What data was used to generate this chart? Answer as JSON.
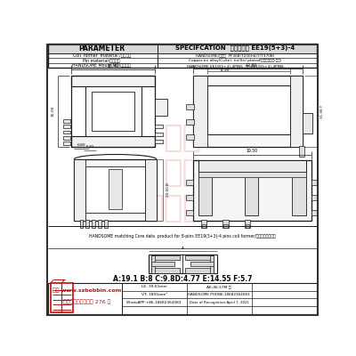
{
  "title": "SPECIFCATION  品名：焉升 EE19(5+3)-4",
  "param_label": "PARAMETER",
  "row1_left": "Coil  former  material /线圈材料",
  "row1_right": "HANDSOME(焉升）  PF36B/T200H4(Y/T370B)",
  "row2_left": "Pin material/端子材料",
  "row2_right": "Copper-tin alloy(CuSn), tin(Sn) plated/锐合银锡镍锡(锡锡)",
  "row3_left": "HANDSOME Moule NO/焉升品名",
  "row3_right": "HANDSOME-EE19(5+3)-4PINS  焉升-EE19(5+3)-4PINS",
  "dim_text": "A:19.1 B:8 C:9.8D:4.77 E:14.55 F:5.7",
  "matching_text": "HANDSOME matching Core data  product for 8-pins EE19(3+3)-4 pins coil former/焉升磁芯配套数据",
  "footer_brand": "焉升 www.szbobbin.com",
  "footer_addr": "东菞市石排下沙大道 276 号",
  "footer_le": "LE: 39.61mm",
  "footer_ae": "AE:46.57M ㎡",
  "footer_vt": "VT: 1805mm³",
  "footer_phone": "HANDSOME PHONE:18682364083",
  "footer_whatsapp": "WhatsAPP:+86-18682364083",
  "footer_date": "Date of Recognition:April 7, 2021",
  "bg_color": "#ffffff",
  "line_color": "#1a1a1a",
  "header_bg": "#d8d8d8",
  "red_color": "#bb1111",
  "watermark_color": "#f2b8b8"
}
